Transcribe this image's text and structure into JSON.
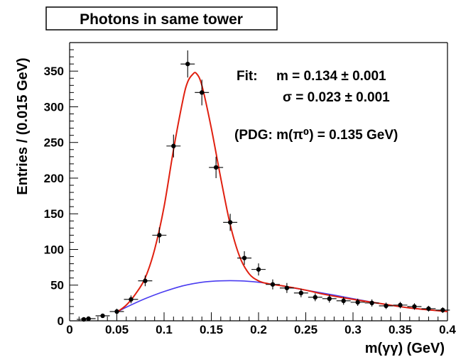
{
  "chart_data": {
    "type": "scatter",
    "title": "Photons in same tower",
    "xlabel": "m(γγ)  (GeV)",
    "ylabel": "Entries / (0.015 GeV)",
    "xlim": [
      0,
      0.4
    ],
    "ylim": [
      0,
      390
    ],
    "x_ticks": [
      "0",
      "0.05",
      "0.1",
      "0.15",
      "0.2",
      "0.25",
      "0.3",
      "0.35",
      "0.4"
    ],
    "y_ticks": [
      "0",
      "50",
      "100",
      "150",
      "200",
      "250",
      "300",
      "350"
    ],
    "grid": false,
    "annotations": {
      "fit_label": "Fit:",
      "fit_mass": "m = 0.134 ± 0.001",
      "fit_sigma": "σ = 0.023 ± 0.001",
      "pdg": "(PDG: m(π⁰) = 0.135 GeV)"
    },
    "series": [
      {
        "kind": "data",
        "x": [
          0.015,
          0.02,
          0.035,
          0.05,
          0.065,
          0.08,
          0.095,
          0.11,
          0.125,
          0.14,
          0.155,
          0.17,
          0.185,
          0.2,
          0.215,
          0.23,
          0.245,
          0.26,
          0.275,
          0.29,
          0.305,
          0.32,
          0.335,
          0.35,
          0.365,
          0.38,
          0.395
        ],
        "y": [
          2,
          3,
          7,
          13,
          30,
          56,
          120,
          245,
          360,
          320,
          215,
          138,
          88,
          72,
          51,
          46,
          39,
          33,
          31,
          28,
          26,
          25,
          21,
          22,
          20,
          17,
          15
        ],
        "x_err": 0.0075,
        "y_err": [
          1.5,
          2,
          3,
          4,
          5.5,
          7.5,
          11,
          16,
          19,
          18,
          15,
          12,
          9.5,
          8.5,
          7,
          7,
          6,
          5.5,
          5.5,
          5.5,
          5,
          5,
          4.5,
          4.5,
          4.5,
          4,
          4
        ]
      },
      {
        "kind": "fit_total",
        "x": [
          0.05,
          0.06,
          0.07,
          0.08,
          0.09,
          0.1,
          0.11,
          0.12,
          0.125,
          0.13,
          0.134,
          0.14,
          0.15,
          0.16,
          0.17,
          0.18,
          0.19,
          0.2,
          0.21,
          0.22,
          0.23,
          0.25,
          0.27,
          0.3,
          0.33,
          0.36,
          0.4
        ],
        "y": [
          12,
          22,
          38,
          60,
          100,
          160,
          240,
          310,
          335,
          345,
          347,
          330,
          270,
          200,
          135,
          90,
          66,
          56,
          52,
          50,
          48,
          43,
          37,
          30,
          24,
          18,
          13
        ]
      },
      {
        "kind": "fit_background",
        "x": [
          0.05,
          0.06,
          0.08,
          0.1,
          0.12,
          0.14,
          0.16,
          0.18,
          0.2,
          0.22,
          0.25,
          0.28,
          0.3,
          0.33,
          0.36,
          0.4
        ],
        "y": [
          12,
          19,
          31,
          41,
          49,
          54,
          56,
          56,
          54,
          50,
          43,
          36,
          31,
          24,
          18,
          13
        ]
      }
    ],
    "colors": {
      "fit_total": "#e02010",
      "fit_background": "#4a3cf0",
      "data": "#000000"
    }
  }
}
